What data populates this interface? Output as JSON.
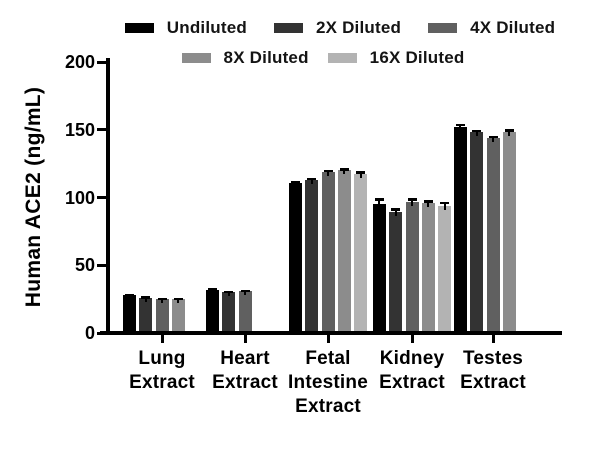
{
  "figure": {
    "background": "#ffffff",
    "axis_color": "#000000",
    "error_bar_color": "#000000"
  },
  "chart_data": {
    "type": "bar",
    "title": "",
    "xlabel": "",
    "ylabel": "Human ACE2 (ng/mL)",
    "ylim": [
      0,
      200
    ],
    "yticks": [
      0,
      50,
      100,
      150,
      200
    ],
    "grid": false,
    "legend_position": "top",
    "categories": [
      "Lung Extract",
      "Heart Extract",
      "Fetal Intestine Extract",
      "Kidney Extract",
      "Testes Extract"
    ],
    "category_lines": [
      [
        "Lung",
        "Extract"
      ],
      [
        "Heart",
        "Extract"
      ],
      [
        "Fetal",
        "Intestine",
        "Extract"
      ],
      [
        "Kidney",
        "Extract"
      ],
      [
        "Testes",
        "Extract"
      ]
    ],
    "series": [
      {
        "name": "Undiluted",
        "color": "#000000",
        "values": [
          28,
          32,
          111,
          95,
          152
        ],
        "errors": [
          1,
          1,
          1.5,
          4.5,
          2.5
        ]
      },
      {
        "name": "2X Diluted",
        "color": "#333333",
        "values": [
          26,
          30,
          113,
          89,
          148
        ],
        "errors": [
          1,
          1,
          1.5,
          3,
          2
        ]
      },
      {
        "name": "4X Diluted",
        "color": "#606060",
        "values": [
          25,
          31,
          119,
          97,
          144
        ],
        "errors": [
          1,
          1,
          1.5,
          2.5,
          1.5
        ]
      },
      {
        "name": "8X Diluted",
        "color": "#8c8c8c",
        "values": [
          25,
          null,
          120,
          96,
          148
        ],
        "errors": [
          1,
          null,
          1.5,
          2,
          2.5
        ]
      },
      {
        "name": "16X Diluted",
        "color": "#b3b3b3",
        "values": [
          null,
          null,
          117,
          94,
          null
        ],
        "errors": [
          null,
          null,
          2.5,
          3,
          null
        ]
      }
    ]
  }
}
